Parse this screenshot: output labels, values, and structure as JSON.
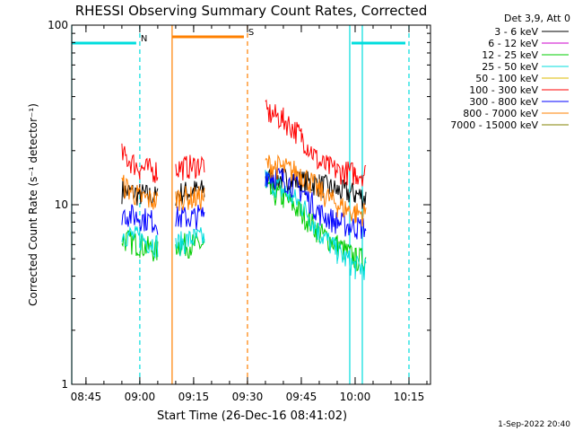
{
  "chart_data": {
    "type": "line",
    "title": "RHESSI Observing Summary Count Rates, Corrected",
    "xlabel": "Start Time (26-Dec-16 08:41:02)",
    "ylabel": "Corrected Count Rate (s⁻¹ detector⁻¹)",
    "y_scale": "log",
    "ylim": [
      1,
      100
    ],
    "xlim": [
      "08:41:02",
      "10:21:00"
    ],
    "x_ticks": [
      "08:45",
      "09:00",
      "09:15",
      "09:30",
      "09:45",
      "10:00",
      "10:15"
    ],
    "y_ticks": [
      "1",
      "10",
      "100"
    ],
    "legend_title": "Det 3,9, Att 0",
    "legend_position": "top-right",
    "timestamp": "1-Sep-2022 20:40",
    "series": [
      {
        "name": "3 - 6 keV",
        "color": "#000000",
        "x": [
          "08:55",
          "09:00",
          "09:05",
          "09:08",
          "09:10",
          "09:15",
          "09:18",
          "09:31",
          "09:35",
          "09:40",
          "09:45",
          "09:50",
          "09:55",
          "10:00",
          "10:03"
        ],
        "y": [
          12,
          11.5,
          11,
          null,
          11.5,
          12,
          12,
          null,
          14,
          14,
          13.5,
          13,
          12,
          11.5,
          11
        ]
      },
      {
        "name": "6 - 12 keV",
        "color": "#cc00cc",
        "x": [],
        "y": []
      },
      {
        "name": "12 - 25 keV",
        "color": "#00cc00",
        "x": [
          "08:55",
          "09:00",
          "09:05",
          "09:08",
          "09:10",
          "09:15",
          "09:18",
          "09:31",
          "09:35",
          "09:40",
          "09:45",
          "09:50",
          "09:55",
          "10:00",
          "10:03"
        ],
        "y": [
          6.5,
          6,
          5.5,
          null,
          6,
          6,
          6,
          null,
          12,
          11,
          9,
          7,
          6,
          5,
          5
        ]
      },
      {
        "name": "25 - 50 keV",
        "color": "#00dddd",
        "x": [
          "08:55",
          "09:00",
          "09:05",
          "09:08",
          "09:10",
          "09:15",
          "09:18",
          "09:31",
          "09:35",
          "09:40",
          "09:45",
          "09:50",
          "09:55",
          "10:00",
          "10:03"
        ],
        "y": [
          7,
          6.5,
          6,
          null,
          6,
          6.5,
          6.5,
          null,
          14,
          12,
          10,
          7,
          5.5,
          4.5,
          4.5
        ]
      },
      {
        "name": "50 - 100 keV",
        "color": "#ddbb00",
        "x": [],
        "y": []
      },
      {
        "name": "100 - 300 keV",
        "color": "#ff0000",
        "x": [
          "08:55",
          "09:00",
          "09:05",
          "09:08",
          "09:10",
          "09:15",
          "09:18",
          "09:31",
          "09:35",
          "09:40",
          "09:45",
          "09:50",
          "09:55",
          "10:00",
          "10:03"
        ],
        "y": [
          19,
          16,
          15.5,
          null,
          16,
          16.5,
          17,
          null,
          33,
          30,
          24,
          17,
          15.5,
          15,
          15
        ]
      },
      {
        "name": "300 - 800 keV",
        "color": "#0000ff",
        "x": [
          "08:55",
          "09:00",
          "09:05",
          "09:08",
          "09:10",
          "09:15",
          "09:18",
          "09:31",
          "09:35",
          "09:40",
          "09:45",
          "09:50",
          "09:55",
          "10:00",
          "10:03"
        ],
        "y": [
          9,
          8.5,
          8,
          null,
          8.5,
          8.5,
          9,
          null,
          15,
          14,
          12,
          9,
          8,
          7.5,
          7.5
        ]
      },
      {
        "name": "800 - 7000 keV",
        "color": "#ff8000",
        "x": [
          "08:55",
          "09:00",
          "09:05",
          "09:08",
          "09:10",
          "09:15",
          "09:18",
          "09:31",
          "09:35",
          "09:40",
          "09:45",
          "09:50",
          "09:55",
          "10:00",
          "10:03"
        ],
        "y": [
          13,
          11,
          10.5,
          null,
          11,
          11,
          11,
          null,
          17,
          16,
          15,
          12,
          10,
          9,
          9
        ]
      },
      {
        "name": "7000 - 15000 keV",
        "color": "#808000",
        "x": [],
        "y": []
      }
    ],
    "flags": [
      {
        "label": "N",
        "color": "#00dddd",
        "start": "08:41:02",
        "end": "08:59:00"
      },
      {
        "label": "S",
        "color": "#ff8000",
        "start": "09:09:00",
        "end": "09:29:00"
      },
      {
        "label": "",
        "color": "#00dddd",
        "start": "09:59:00",
        "end": "10:14:00"
      }
    ],
    "vertical_lines": [
      {
        "color": "#00dddd",
        "style": "solid",
        "x": "08:41:02"
      },
      {
        "color": "#00dddd",
        "style": "dashed",
        "x": "09:00:00"
      },
      {
        "color": "#ff8000",
        "style": "solid",
        "x": "09:09:00"
      },
      {
        "color": "#ff8000",
        "style": "dashed",
        "x": "09:30:00"
      },
      {
        "color": "#00dddd",
        "style": "solid",
        "x": "09:58:30"
      },
      {
        "color": "#00dddd",
        "style": "solid",
        "x": "10:02:00"
      },
      {
        "color": "#00dddd",
        "style": "dashed",
        "x": "10:15:00"
      }
    ]
  }
}
